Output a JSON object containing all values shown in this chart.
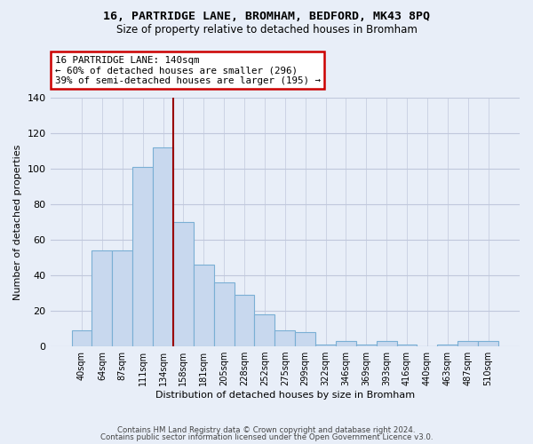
{
  "title": "16, PARTRIDGE LANE, BROMHAM, BEDFORD, MK43 8PQ",
  "subtitle": "Size of property relative to detached houses in Bromham",
  "xlabel": "Distribution of detached houses by size in Bromham",
  "ylabel": "Number of detached properties",
  "bar_color": "#c8d8ee",
  "bar_edge_color": "#7aafd4",
  "background_color": "#e8eef8",
  "grid_color": "#c0c8dc",
  "categories": [
    "40sqm",
    "64sqm",
    "87sqm",
    "111sqm",
    "134sqm",
    "158sqm",
    "181sqm",
    "205sqm",
    "228sqm",
    "252sqm",
    "275sqm",
    "299sqm",
    "322sqm",
    "346sqm",
    "369sqm",
    "393sqm",
    "416sqm",
    "440sqm",
    "463sqm",
    "487sqm",
    "510sqm"
  ],
  "values": [
    9,
    54,
    54,
    101,
    112,
    70,
    46,
    36,
    29,
    18,
    9,
    8,
    1,
    3,
    1,
    3,
    1,
    0,
    1,
    3,
    3
  ],
  "vline_index": 4,
  "vline_color": "#990000",
  "annotation_line1": "16 PARTRIDGE LANE: 140sqm",
  "annotation_line2": "← 60% of detached houses are smaller (296)",
  "annotation_line3": "39% of semi-detached houses are larger (195) →",
  "annotation_box_facecolor": "white",
  "annotation_box_edgecolor": "#cc0000",
  "footer_line1": "Contains HM Land Registry data © Crown copyright and database right 2024.",
  "footer_line2": "Contains public sector information licensed under the Open Government Licence v3.0.",
  "ylim": [
    0,
    140
  ],
  "yticks": [
    0,
    20,
    40,
    60,
    80,
    100,
    120,
    140
  ]
}
